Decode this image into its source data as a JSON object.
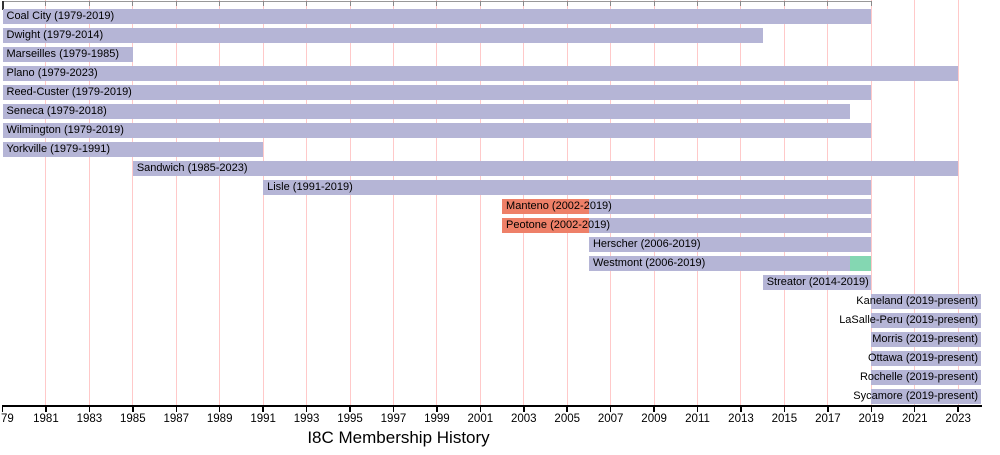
{
  "chart_data": {
    "type": "bar",
    "variant": "horizontal-timeline-gantt",
    "title": "I8C Membership History",
    "legend_position": "none",
    "grid": true,
    "x_axis": {
      "min": 1979,
      "max": 2024,
      "tick_step": 2,
      "ticks": [
        {
          "year": 1979,
          "label": "79"
        },
        {
          "year": 1981,
          "label": "1981"
        },
        {
          "year": 1983,
          "label": "1983"
        },
        {
          "year": 1985,
          "label": "1985"
        },
        {
          "year": 1987,
          "label": "1987"
        },
        {
          "year": 1989,
          "label": "1989"
        },
        {
          "year": 1991,
          "label": "1991"
        },
        {
          "year": 1993,
          "label": "1993"
        },
        {
          "year": 1995,
          "label": "1995"
        },
        {
          "year": 1997,
          "label": "1997"
        },
        {
          "year": 1999,
          "label": "1999"
        },
        {
          "year": 2001,
          "label": "2001"
        },
        {
          "year": 2003,
          "label": "2003"
        },
        {
          "year": 2005,
          "label": "2005"
        },
        {
          "year": 2007,
          "label": "2007"
        },
        {
          "year": 2009,
          "label": "2009"
        },
        {
          "year": 2011,
          "label": "2011"
        },
        {
          "year": 2013,
          "label": "2013"
        },
        {
          "year": 2015,
          "label": "2015"
        },
        {
          "year": 2017,
          "label": "2017"
        },
        {
          "year": 2019,
          "label": "2019"
        },
        {
          "year": 2021,
          "label": "2021"
        },
        {
          "year": 2023,
          "label": "2023"
        }
      ]
    },
    "colors": {
      "bar": "#b5b5d6",
      "bar_red": "#ee8068",
      "bar_green": "#84d7b2",
      "gridline": "#ffc9c9",
      "axis": "#000000"
    },
    "bars": [
      {
        "name": "Coal City",
        "label": "Coal City (1979-2019)",
        "label_align": "left",
        "segments": [
          {
            "from": 1979,
            "to": 2019,
            "color": "bar"
          }
        ]
      },
      {
        "name": "Dwight",
        "label": "Dwight (1979-2014)",
        "label_align": "left",
        "segments": [
          {
            "from": 1979,
            "to": 2014,
            "color": "bar"
          }
        ]
      },
      {
        "name": "Marseilles",
        "label": "Marseilles (1979-1985)",
        "label_align": "left",
        "segments": [
          {
            "from": 1979,
            "to": 1985,
            "color": "bar"
          }
        ]
      },
      {
        "name": "Plano",
        "label": "Plano (1979-2023)",
        "label_align": "left",
        "segments": [
          {
            "from": 1979,
            "to": 2023,
            "color": "bar"
          }
        ]
      },
      {
        "name": "Reed-Custer",
        "label": "Reed-Custer (1979-2019)",
        "label_align": "left",
        "segments": [
          {
            "from": 1979,
            "to": 2019,
            "color": "bar"
          }
        ]
      },
      {
        "name": "Seneca",
        "label": "Seneca (1979-2018)",
        "label_align": "left",
        "segments": [
          {
            "from": 1979,
            "to": 2018,
            "color": "bar"
          }
        ]
      },
      {
        "name": "Wilmington",
        "label": "Wilmington (1979-2019)",
        "label_align": "left",
        "segments": [
          {
            "from": 1979,
            "to": 2019,
            "color": "bar"
          }
        ]
      },
      {
        "name": "Yorkville",
        "label": "Yorkville (1979-1991)",
        "label_align": "left",
        "segments": [
          {
            "from": 1979,
            "to": 1991,
            "color": "bar"
          }
        ]
      },
      {
        "name": "Sandwich",
        "label": "Sandwich (1985-2023)",
        "label_align": "left",
        "segments": [
          {
            "from": 1985,
            "to": 2023,
            "color": "bar"
          }
        ]
      },
      {
        "name": "Lisle",
        "label": "Lisle (1991-2019)",
        "label_align": "left",
        "segments": [
          {
            "from": 1991,
            "to": 2019,
            "color": "bar"
          }
        ]
      },
      {
        "name": "Manteno",
        "label": "Manteno (2002-2019)",
        "label_align": "left",
        "segments": [
          {
            "from": 2002,
            "to": 2006,
            "color": "bar_red"
          },
          {
            "from": 2006,
            "to": 2019,
            "color": "bar"
          }
        ]
      },
      {
        "name": "Peotone",
        "label": "Peotone (2002-2019)",
        "label_align": "left",
        "segments": [
          {
            "from": 2002,
            "to": 2006,
            "color": "bar_red"
          },
          {
            "from": 2006,
            "to": 2019,
            "color": "bar"
          }
        ]
      },
      {
        "name": "Herscher",
        "label": "Herscher (2006-2019)",
        "label_align": "left",
        "segments": [
          {
            "from": 2006,
            "to": 2019,
            "color": "bar"
          }
        ]
      },
      {
        "name": "Westmont",
        "label": "Westmont (2006-2019)",
        "label_align": "left",
        "segments": [
          {
            "from": 2006,
            "to": 2018,
            "color": "bar"
          },
          {
            "from": 2018,
            "to": 2019,
            "color": "bar_green"
          }
        ]
      },
      {
        "name": "Streator",
        "label": "Streator (2014-2019)",
        "label_align": "left",
        "segments": [
          {
            "from": 2014,
            "to": 2019,
            "color": "bar"
          }
        ]
      },
      {
        "name": "Kaneland",
        "label": "Kaneland (2019-present)",
        "label_align": "right",
        "segments": [
          {
            "from": 2019,
            "to": "present",
            "color": "bar"
          }
        ]
      },
      {
        "name": "LaSalle-Peru",
        "label": "LaSalle-Peru (2019-present)",
        "label_align": "right",
        "segments": [
          {
            "from": 2019,
            "to": "present",
            "color": "bar"
          }
        ]
      },
      {
        "name": "Morris",
        "label": "Morris (2019-present)",
        "label_align": "right",
        "segments": [
          {
            "from": 2019,
            "to": "present",
            "color": "bar"
          }
        ]
      },
      {
        "name": "Ottawa",
        "label": "Ottawa (2019-present)",
        "label_align": "right",
        "segments": [
          {
            "from": 2019,
            "to": "present",
            "color": "bar"
          }
        ]
      },
      {
        "name": "Rochelle",
        "label": "Rochelle (2019-present)",
        "label_align": "right",
        "segments": [
          {
            "from": 2019,
            "to": "present",
            "color": "bar"
          }
        ]
      },
      {
        "name": "Sycamore",
        "label": "Sycamore (2019-present)",
        "label_align": "right",
        "segments": [
          {
            "from": 2019,
            "to": "present",
            "color": "bar"
          }
        ]
      }
    ]
  }
}
